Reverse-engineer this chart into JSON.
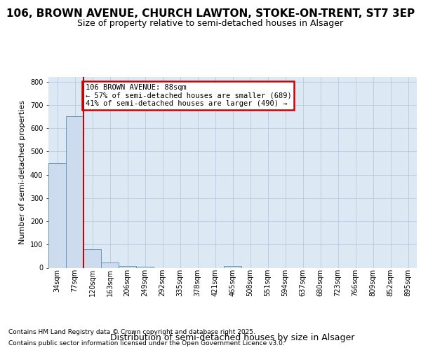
{
  "title_line1": "106, BROWN AVENUE, CHURCH LAWTON, STOKE-ON-TRENT, ST7 3EP",
  "title_line2": "Size of property relative to semi-detached houses in Alsager",
  "xlabel": "Distribution of semi-detached houses by size in Alsager",
  "ylabel": "Number of semi-detached properties",
  "bins": [
    "34sqm",
    "77sqm",
    "120sqm",
    "163sqm",
    "206sqm",
    "249sqm",
    "292sqm",
    "335sqm",
    "378sqm",
    "421sqm",
    "465sqm",
    "508sqm",
    "551sqm",
    "594sqm",
    "637sqm",
    "680sqm",
    "723sqm",
    "766sqm",
    "809sqm",
    "852sqm",
    "895sqm"
  ],
  "values": [
    450,
    650,
    80,
    22,
    8,
    5,
    0,
    0,
    0,
    0,
    8,
    0,
    0,
    0,
    0,
    0,
    0,
    0,
    0,
    0,
    0
  ],
  "bar_color": "#ccdcee",
  "bar_edge_color": "#6699bb",
  "plot_bg_color": "#dce8f4",
  "grid_color": "#b8cce0",
  "fig_bg_color": "#ffffff",
  "subject_line_color": "#cc0000",
  "subject_bin_index": 2,
  "annotation_text": "106 BROWN AVENUE: 88sqm\n← 57% of semi-detached houses are smaller (689)\n41% of semi-detached houses are larger (490) →",
  "annotation_box_edgecolor": "#cc0000",
  "annotation_box_facecolor": "#ffffff",
  "ylim_max": 820,
  "yticks": [
    0,
    100,
    200,
    300,
    400,
    500,
    600,
    700,
    800
  ],
  "footer_line1": "Contains HM Land Registry data © Crown copyright and database right 2025.",
  "footer_line2": "Contains public sector information licensed under the Open Government Licence v3.0.",
  "title1_fontsize": 11,
  "title2_fontsize": 9,
  "ylabel_fontsize": 8,
  "xlabel_fontsize": 9,
  "tick_fontsize": 7,
  "footer_fontsize": 6.5
}
